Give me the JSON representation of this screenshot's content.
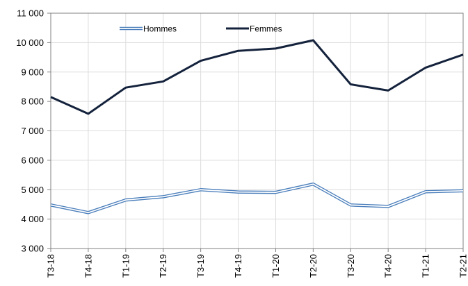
{
  "chart_data": {
    "type": "line",
    "title": "",
    "xlabel": "",
    "ylabel": "",
    "categories": [
      "T3-18",
      "T4-18",
      "T1-19",
      "T2-19",
      "T3-19",
      "T4-19",
      "T1-20",
      "T2-20",
      "T3-20",
      "T4-20",
      "T1-21",
      "T2-21"
    ],
    "ylim": [
      3000,
      11000
    ],
    "yticks": [
      3000,
      4000,
      5000,
      6000,
      7000,
      8000,
      9000,
      10000,
      11000
    ],
    "ytick_labels": [
      "3 000",
      "4 000",
      "5 000",
      "6 000",
      "7 000",
      "8 000",
      "9 000",
      "10 000",
      "11 000"
    ],
    "grid": true,
    "legend_position": "top",
    "series": [
      {
        "name": "Hommes",
        "style": "double-line",
        "color": "#4a7ebb",
        "values": [
          4480,
          4220,
          4650,
          4760,
          5000,
          4920,
          4910,
          5190,
          4480,
          4430,
          4930,
          4960
        ]
      },
      {
        "name": "Femmes",
        "style": "solid",
        "color": "#14223c",
        "values": [
          8150,
          7580,
          8470,
          8680,
          9380,
          9720,
          9800,
          10080,
          8580,
          8370,
          9150,
          9590
        ]
      }
    ]
  }
}
